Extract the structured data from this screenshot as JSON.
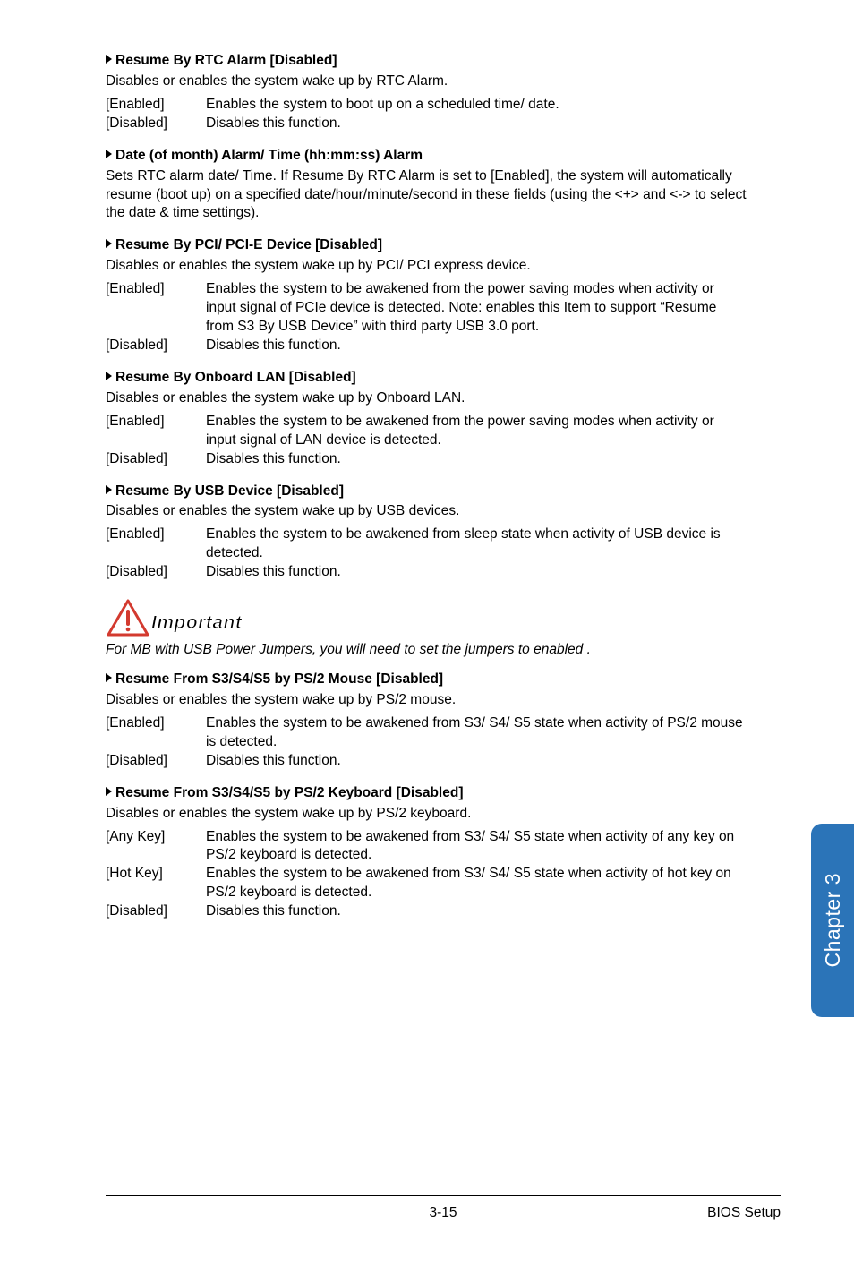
{
  "sections": [
    {
      "heading": "Resume By RTC Alarm [Disabled]",
      "desc": "Disables or enables the system wake up by RTC Alarm.",
      "options": [
        {
          "key": "[Enabled]",
          "val": "Enables the system to boot up on a scheduled time/ date."
        },
        {
          "key": "[Disabled]",
          "val": "Disables this function."
        }
      ]
    },
    {
      "heading": "Date (of month) Alarm/ Time (hh:mm:ss) Alarm",
      "desc": "Sets RTC alarm date/ Time. If Resume By RTC Alarm is set to [Enabled], the system will automatically resume (boot up) on a specified date/hour/minute/second in these fields (using the <+> and <-> to select the date & time settings).",
      "options": []
    },
    {
      "heading": "Resume By PCI/ PCI-E Device [Disabled]",
      "desc": "Disables or enables the system wake up by PCI/ PCI express device.",
      "options": [
        {
          "key": "[Enabled]",
          "val": "Enables the system to be awakened from the power saving modes when activity or input signal of PCIe device is detected. Note: enables this Item to support “Resume from S3 By USB Device” with third party USB 3.0 port."
        },
        {
          "key": "[Disabled]",
          "val": "Disables this function."
        }
      ]
    },
    {
      "heading": "Resume By Onboard LAN [Disabled]",
      "desc": "Disables or enables the system wake up by Onboard LAN.",
      "options": [
        {
          "key": "[Enabled]",
          "val": "Enables the system to be awakened from the power saving modes when activity or input signal of LAN device is detected."
        },
        {
          "key": "[Disabled]",
          "val": "Disables this function."
        }
      ]
    },
    {
      "heading": "Resume By USB Device [Disabled]",
      "desc": "Disables or enables the system wake up by USB devices.",
      "options": [
        {
          "key": "[Enabled]",
          "val": "Enables the system to be awakened from sleep state when activity of USB device is detected."
        },
        {
          "key": "[Disabled]",
          "val": "Disables this function."
        }
      ]
    }
  ],
  "important_label": "Important",
  "important_note": "For MB with USB Power Jumpers, you will need to set the jumpers to enabled .",
  "sections2": [
    {
      "heading": "Resume From S3/S4/S5 by PS/2 Mouse [Disabled]",
      "desc": "Disables or enables the system wake up by PS/2 mouse.",
      "options": [
        {
          "key": "[Enabled]",
          "val": "Enables the system to be awakened from S3/ S4/ S5 state when activity of PS/2 mouse is detected."
        },
        {
          "key": "[Disabled]",
          "val": "Disables this function."
        }
      ]
    },
    {
      "heading": "Resume From S3/S4/S5 by PS/2 Keyboard [Disabled]",
      "desc": "Disables or enables the system wake up by PS/2 keyboard.",
      "options": [
        {
          "key": "[Any Key]",
          "val": "Enables the system to be awakened from S3/ S4/ S5 state when activity of any key on PS/2 keyboard is detected."
        },
        {
          "key": "[Hot Key]",
          "val": "Enables the system to be awakened from S3/ S4/ S5 state when activity of hot key on PS/2 keyboard is detected."
        },
        {
          "key": "[Disabled]",
          "val": "Disables this function."
        }
      ]
    }
  ],
  "side_tab": "Chapter 3",
  "footer": {
    "page": "3-15",
    "title": "BIOS Setup"
  },
  "colors": {
    "tab_bg": "#2b74b8",
    "triangle_stroke": "#d33a2f"
  }
}
